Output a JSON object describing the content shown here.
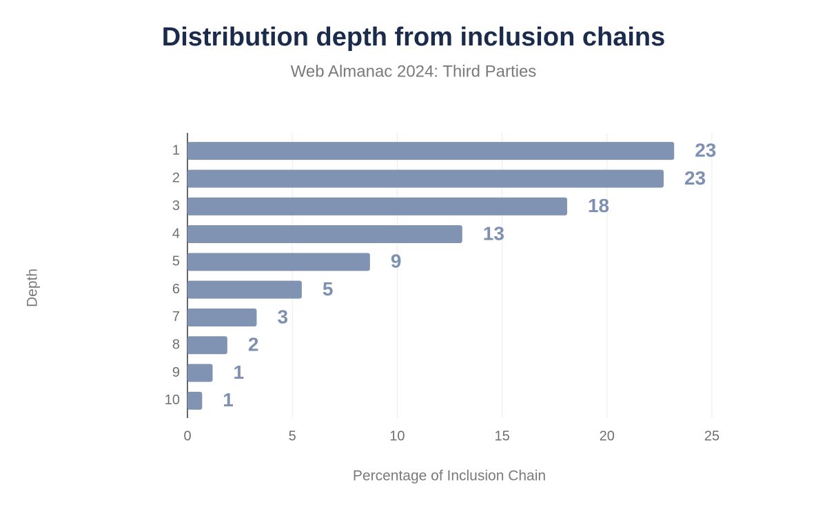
{
  "chart_data": {
    "type": "bar",
    "orientation": "horizontal",
    "title": "Distribution depth from inclusion chains",
    "subtitle": "Web Almanac 2024: Third Parties",
    "x_label": "Percentage of Inclusion Chain",
    "y_label": "Depth",
    "categories": [
      "1",
      "2",
      "3",
      "4",
      "5",
      "6",
      "7",
      "8",
      "9",
      "10"
    ],
    "values": [
      23.2,
      22.7,
      18.1,
      13.1,
      8.7,
      5.45,
      3.3,
      1.9,
      1.2,
      0.7
    ],
    "value_labels": [
      "23",
      "23",
      "18",
      "13",
      "9",
      "5",
      "3",
      "2",
      "1",
      "1"
    ],
    "color": "#8093b3",
    "xlim": [
      0,
      25
    ],
    "xticks": [
      0,
      5,
      10,
      15,
      20,
      25
    ],
    "grid": true
  }
}
